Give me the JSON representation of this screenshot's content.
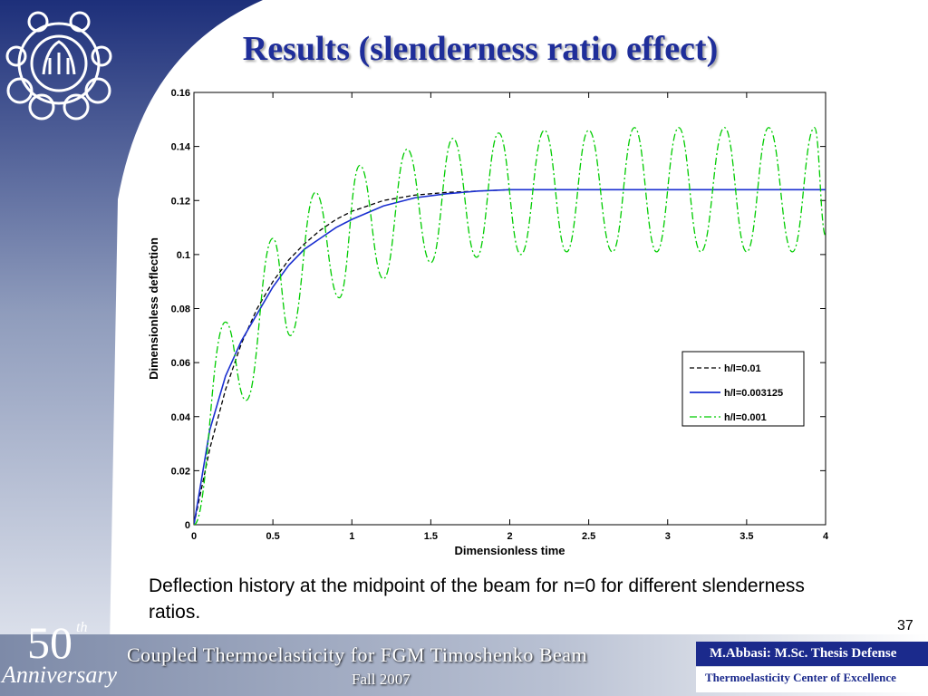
{
  "slide": {
    "title": "Results (slenderness ratio effect)",
    "caption": "Deflection history at the midpoint of the beam for n=0 for different slenderness ratios.",
    "page_number": "37",
    "logo_icon": "university-emblem-icon"
  },
  "footer": {
    "left_title": "Coupled Thermoelasticity for FGM Timoshenko Beam",
    "date": "Fall 2007",
    "author": "M.Abbasi: M.Sc. Thesis Defense",
    "center": "Thermoelasticity Center of Excellence",
    "anniversary_number": "50",
    "anniversary_suffix": "th",
    "anniversary_word": "Anniversary"
  },
  "colors": {
    "title": "#1f2e9a",
    "series_1": "#000000",
    "series_2": "#1a2fd0",
    "series_3": "#00cc00"
  },
  "chart_data": {
    "type": "line",
    "title": "",
    "xlabel": "Dimensionless time",
    "ylabel": "Dimensionless deflection",
    "xlim": [
      0,
      4
    ],
    "ylim": [
      0,
      0.16
    ],
    "xticks": [
      "0",
      "0.5",
      "1",
      "1.5",
      "2",
      "2.5",
      "3",
      "3.5",
      "4"
    ],
    "yticks": [
      "0",
      "0.02",
      "0.04",
      "0.06",
      "0.08",
      "0.1",
      "0.12",
      "0.14",
      "0.16"
    ],
    "grid": false,
    "legend_position": "right-lower",
    "series": [
      {
        "name": "h/l=0.01",
        "style": "dashed",
        "x": [
          0,
          0.1,
          0.2,
          0.3,
          0.4,
          0.5,
          0.6,
          0.7,
          0.8,
          0.9,
          1.0,
          1.2,
          1.4,
          1.6,
          1.8,
          2.0,
          2.5,
          3.0,
          3.5,
          4.0
        ],
        "y": [
          0,
          0.028,
          0.05,
          0.067,
          0.08,
          0.09,
          0.098,
          0.104,
          0.109,
          0.113,
          0.116,
          0.12,
          0.122,
          0.123,
          0.1235,
          0.124,
          0.124,
          0.124,
          0.124,
          0.124
        ]
      },
      {
        "name": "h/l=0.003125",
        "style": "solid",
        "x": [
          0,
          0.1,
          0.2,
          0.3,
          0.4,
          0.5,
          0.6,
          0.7,
          0.8,
          0.9,
          1.0,
          1.2,
          1.4,
          1.6,
          1.8,
          2.0,
          2.5,
          3.0,
          3.5,
          4.0
        ],
        "y": [
          0,
          0.035,
          0.055,
          0.068,
          0.078,
          0.088,
          0.096,
          0.102,
          0.106,
          0.11,
          0.113,
          0.118,
          0.121,
          0.1225,
          0.1235,
          0.124,
          0.124,
          0.124,
          0.124,
          0.124
        ]
      },
      {
        "name": "h/l=0.001",
        "style": "dash-dot",
        "x": [
          0,
          0.2,
          0.33,
          0.5,
          0.61,
          0.77,
          0.92,
          1.05,
          1.2,
          1.35,
          1.5,
          1.64,
          1.79,
          1.93,
          2.07,
          2.22,
          2.36,
          2.5,
          2.65,
          2.79,
          2.93,
          3.07,
          3.21,
          3.36,
          3.5,
          3.64,
          3.79,
          3.93,
          4.0
        ],
        "y": [
          0,
          0.075,
          0.046,
          0.106,
          0.07,
          0.123,
          0.084,
          0.133,
          0.091,
          0.139,
          0.097,
          0.143,
          0.099,
          0.145,
          0.1,
          0.146,
          0.101,
          0.146,
          0.101,
          0.147,
          0.101,
          0.147,
          0.101,
          0.147,
          0.101,
          0.147,
          0.101,
          0.147,
          0.107
        ]
      }
    ]
  }
}
